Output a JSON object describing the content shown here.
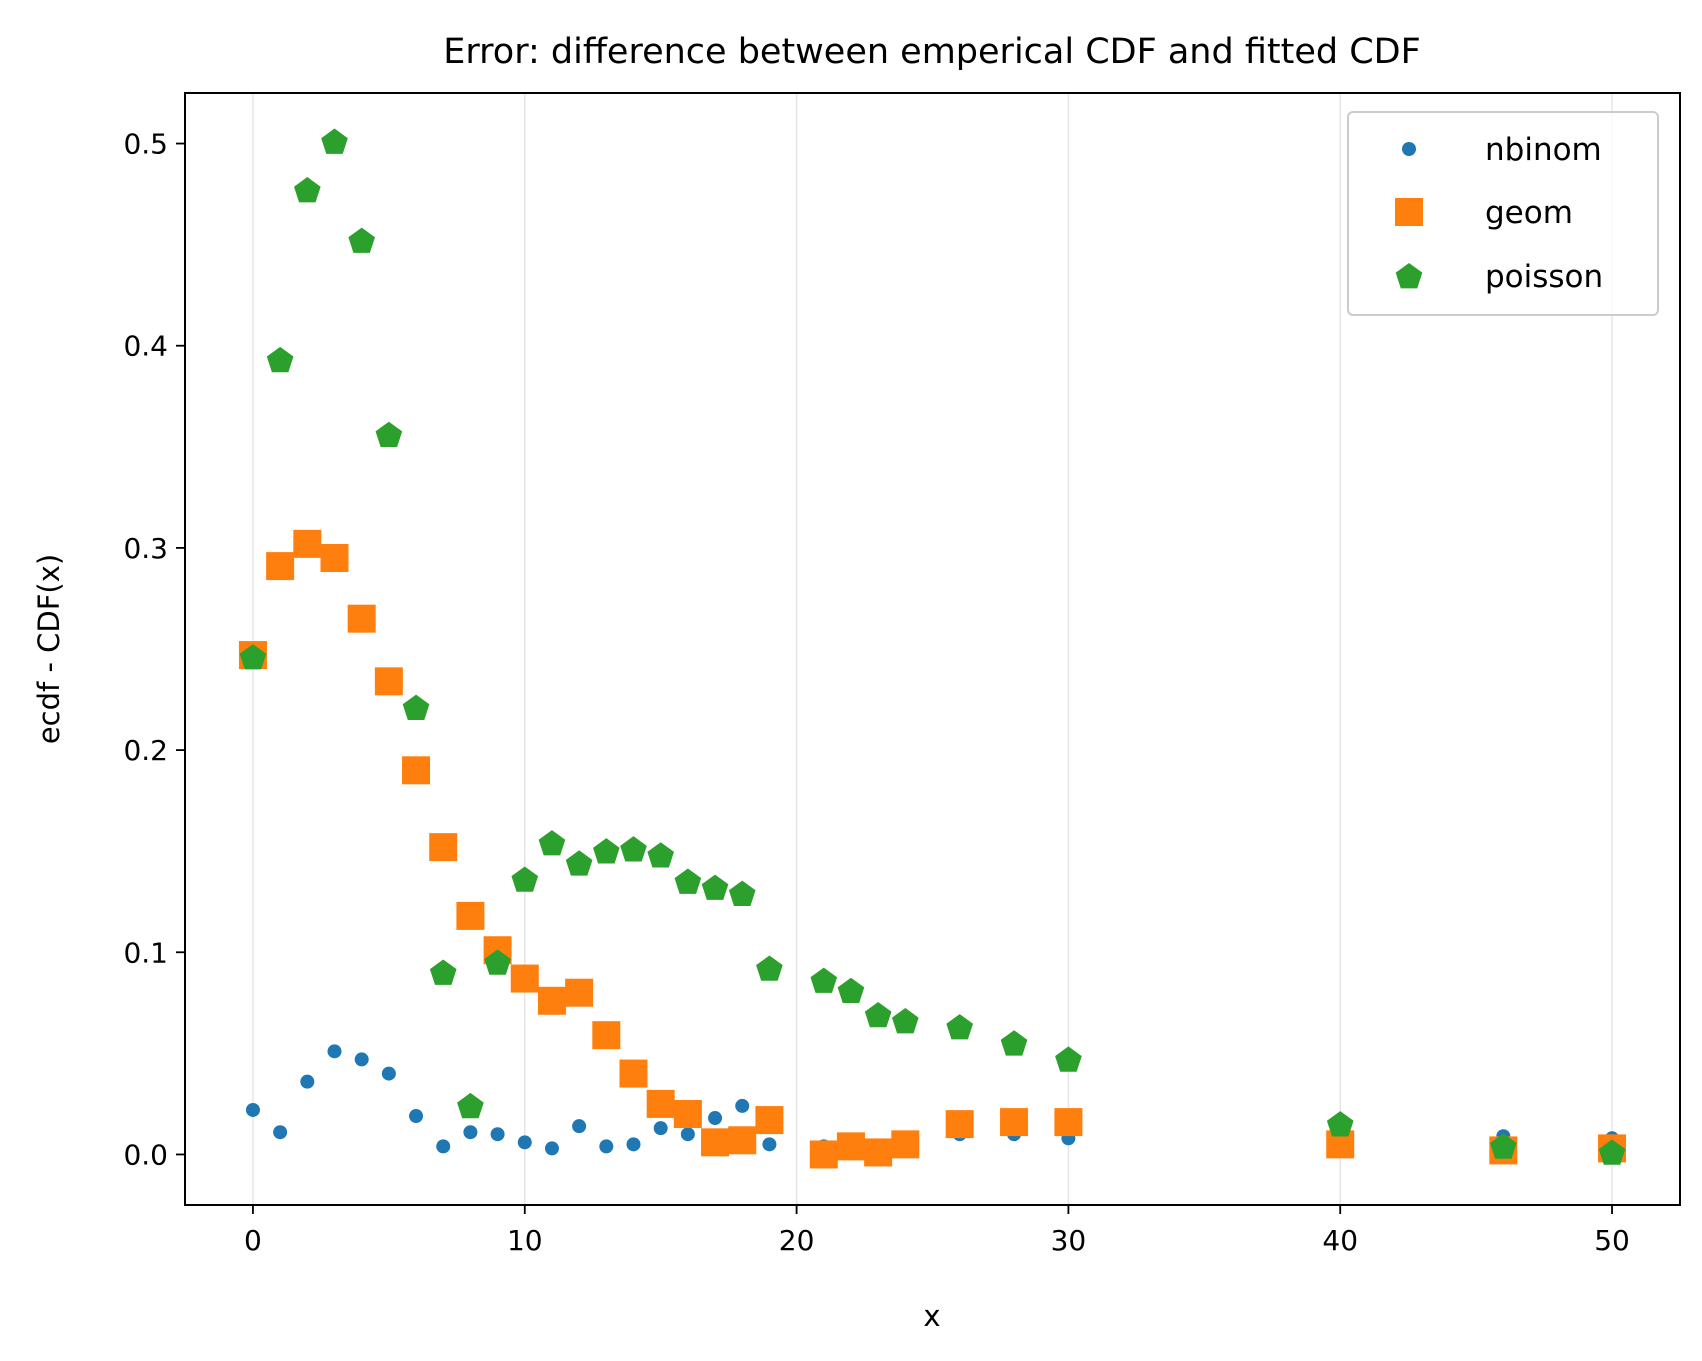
{
  "chart_data": {
    "type": "scatter",
    "title": "Error: difference between emperical CDF and fitted CDF",
    "xlabel": "x",
    "ylabel": "ecdf - CDF(x)",
    "xlim": [
      -2.5,
      52.5
    ],
    "ylim": [
      -0.025,
      0.525
    ],
    "x_ticks": [
      0,
      10,
      20,
      30,
      40,
      50
    ],
    "x_tick_labels": [
      "0",
      "10",
      "20",
      "30",
      "40",
      "50"
    ],
    "y_ticks": [
      0.0,
      0.1,
      0.2,
      0.3,
      0.4,
      0.5
    ],
    "y_tick_labels": [
      "0.0",
      "0.1",
      "0.2",
      "0.3",
      "0.4",
      "0.5"
    ],
    "grid": "vertical",
    "legend_position": "top-right",
    "series": [
      {
        "name": "nbinom",
        "color": "#1f77b4",
        "marker": "circle",
        "x": [
          0,
          1,
          2,
          3,
          4,
          5,
          6,
          7,
          8,
          9,
          10,
          11,
          12,
          13,
          14,
          15,
          16,
          17,
          18,
          19,
          21,
          22,
          23,
          24,
          26,
          28,
          30,
          40,
          46,
          50
        ],
        "y": [
          0.022,
          0.011,
          0.036,
          0.051,
          0.047,
          0.04,
          0.019,
          0.004,
          0.011,
          0.01,
          0.006,
          0.003,
          0.014,
          0.004,
          0.005,
          0.013,
          0.01,
          0.018,
          0.024,
          0.005,
          0.004,
          0.004,
          0.002,
          0.006,
          0.01,
          0.01,
          0.008,
          0.004,
          0.009,
          0.008
        ]
      },
      {
        "name": "geom",
        "color": "#ff7f0e",
        "marker": "square",
        "x": [
          0,
          1,
          2,
          3,
          4,
          5,
          6,
          7,
          8,
          9,
          10,
          11,
          12,
          13,
          14,
          15,
          16,
          17,
          18,
          19,
          21,
          22,
          23,
          24,
          26,
          28,
          30,
          40,
          46,
          50
        ],
        "y": [
          0.247,
          0.291,
          0.302,
          0.295,
          0.265,
          0.234,
          0.19,
          0.152,
          0.118,
          0.101,
          0.087,
          0.076,
          0.08,
          0.059,
          0.04,
          0.025,
          0.02,
          0.006,
          0.007,
          0.017,
          0.0,
          0.004,
          0.001,
          0.005,
          0.015,
          0.016,
          0.016,
          0.005,
          0.002,
          0.003
        ]
      },
      {
        "name": "poisson",
        "color": "#2ca02c",
        "marker": "pentagon",
        "x": [
          0,
          1,
          2,
          3,
          4,
          5,
          6,
          7,
          8,
          9,
          10,
          11,
          12,
          13,
          14,
          15,
          16,
          17,
          18,
          19,
          21,
          22,
          23,
          24,
          26,
          28,
          30,
          40,
          46,
          50
        ],
        "y": [
          0.246,
          0.393,
          0.477,
          0.501,
          0.452,
          0.356,
          0.221,
          0.09,
          0.024,
          0.095,
          0.136,
          0.154,
          0.144,
          0.15,
          0.151,
          0.148,
          0.135,
          0.132,
          0.129,
          0.092,
          0.086,
          0.081,
          0.069,
          0.066,
          0.063,
          0.055,
          0.047,
          0.015,
          0.004,
          0.001
        ]
      }
    ]
  }
}
